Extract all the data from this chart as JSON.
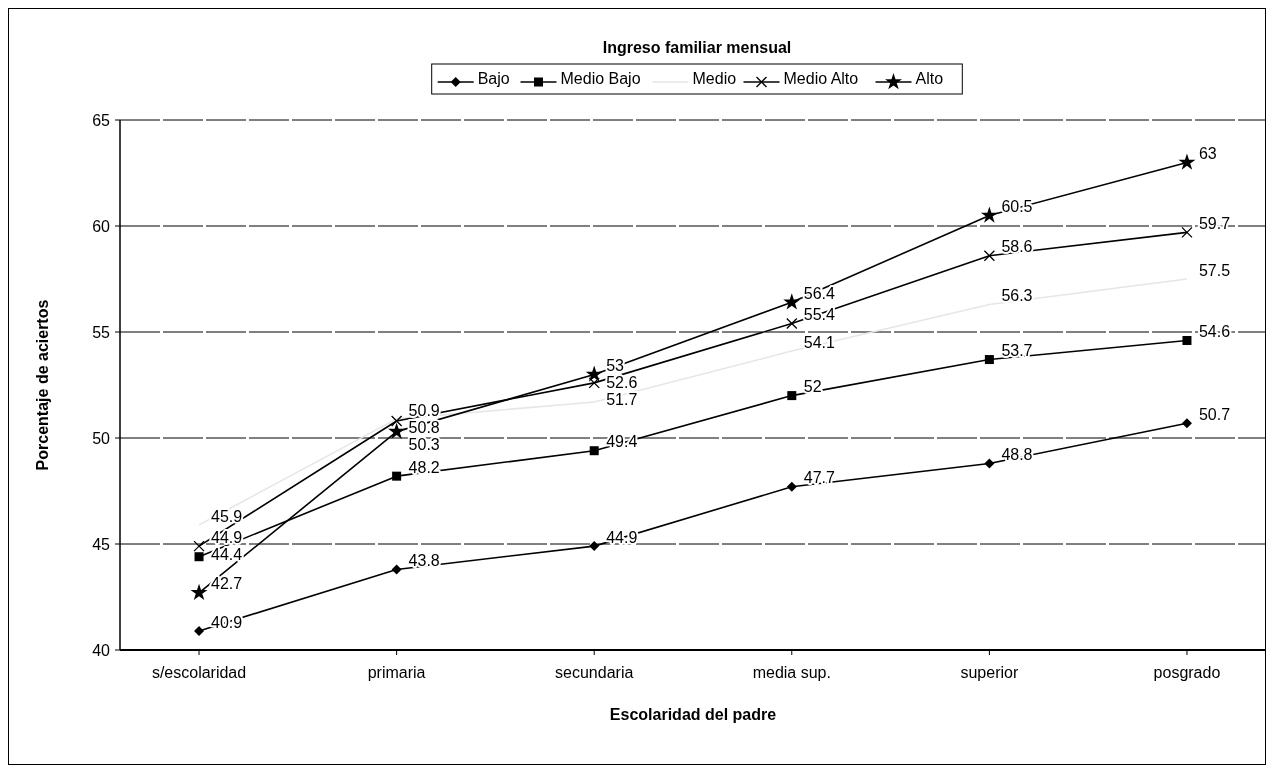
{
  "chart_data": {
    "type": "line",
    "title": "Ingreso familiar mensual",
    "xlabel": "Escolaridad del padre",
    "ylabel": "Porcentaje de aciertos",
    "categories": [
      "s/escolaridad",
      "primaria",
      "secundaria",
      "media sup.",
      "superior",
      "posgrado"
    ],
    "series": [
      {
        "name": "Bajo",
        "color": "#000000",
        "marker": "diamond",
        "values": [
          40.9,
          43.8,
          44.9,
          47.7,
          48.8,
          50.7
        ]
      },
      {
        "name": "Medio Bajo",
        "color": "#000000",
        "marker": "square",
        "values": [
          44.4,
          48.2,
          49.4,
          52,
          53.7,
          54.6
        ]
      },
      {
        "name": "Medio",
        "color": "#e6e6e6",
        "marker": "none",
        "values": [
          45.9,
          50.9,
          51.7,
          54.1,
          56.3,
          57.5
        ]
      },
      {
        "name": "Medio Alto",
        "color": "#000000",
        "marker": "cross",
        "values": [
          44.9,
          50.8,
          52.6,
          55.4,
          58.6,
          59.7
        ]
      },
      {
        "name": "Alto",
        "color": "#000000",
        "marker": "star",
        "values": [
          42.7,
          50.3,
          53,
          56.4,
          60.5,
          63
        ]
      }
    ],
    "ylim": [
      40,
      65
    ],
    "yticks": [
      40,
      45,
      50,
      55,
      60,
      65
    ],
    "grid": "y",
    "legend": "top",
    "data_labels": true
  }
}
